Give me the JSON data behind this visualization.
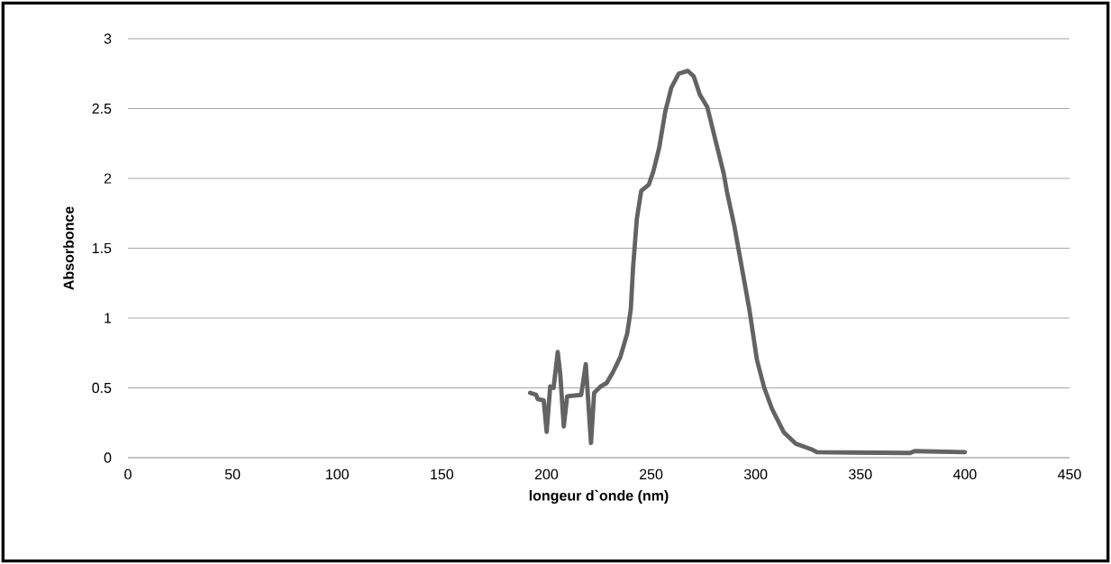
{
  "chart_data": {
    "type": "line",
    "xlabel": "longeur d`onde (nm)",
    "ylabel": "Absorbonce",
    "xlim": [
      0,
      450
    ],
    "ylim": [
      0,
      3
    ],
    "xticks": [
      0,
      50,
      100,
      150,
      200,
      250,
      300,
      350,
      400,
      450
    ],
    "yticks": [
      0,
      0.5,
      1,
      1.5,
      2,
      2.5,
      3
    ],
    "grid": "y",
    "marker": "none",
    "line_style": "solid",
    "series": [
      {
        "color": "#636363",
        "x": [
          192.2,
          195.1,
          195.8,
          198.7,
          200.1,
          201.8,
          203.4,
          205.4,
          206.6,
          208.3,
          209.9,
          216.6,
          218.8,
          221.3,
          222.8,
          225.9,
          228.8,
          231.7,
          235.3,
          238.6,
          240.3,
          241.4,
          243.2,
          245.3,
          248.9,
          251.1,
          253.9,
          256.8,
          259.7,
          263.2,
          267.6,
          270.4,
          273.3,
          276.9,
          280.5,
          284.8,
          286.2,
          289.8,
          293.4,
          297.0,
          300.6,
          304.1,
          307.8,
          313.5,
          319.2,
          326.4,
          329.3,
          345.0,
          373.8,
          375.9,
          400
        ],
        "values": [
          0.465,
          0.45,
          0.42,
          0.41,
          0.185,
          0.51,
          0.5,
          0.757,
          0.6,
          0.224,
          0.44,
          0.45,
          0.67,
          0.105,
          0.465,
          0.51,
          0.535,
          0.61,
          0.72,
          0.89,
          1.06,
          1.36,
          1.71,
          1.91,
          1.955,
          2.05,
          2.22,
          2.48,
          2.65,
          2.75,
          2.77,
          2.73,
          2.6,
          2.51,
          2.29,
          2.03,
          1.91,
          1.66,
          1.36,
          1.06,
          0.7,
          0.5,
          0.35,
          0.18,
          0.1,
          0.062,
          0.04,
          0.037,
          0.034,
          0.047,
          0.04
        ]
      }
    ]
  }
}
